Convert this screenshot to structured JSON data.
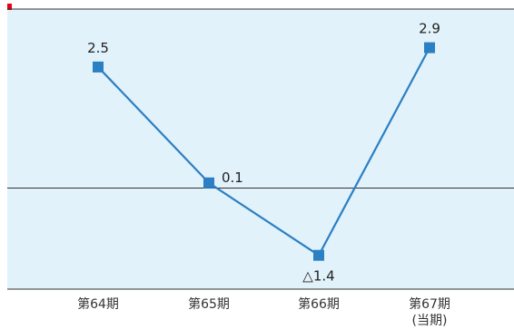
{
  "chart_data": {
    "type": "line",
    "categories": [
      "第64期",
      "第65期",
      "第66期",
      "第67期"
    ],
    "category_sublabels": [
      "",
      "",
      "",
      "(当期)"
    ],
    "values": [
      2.5,
      0.1,
      -1.4,
      2.9
    ],
    "data_labels": [
      "2.5",
      "0.1",
      "△1.4",
      "2.9"
    ],
    "ylim": [
      -2.1,
      3.7
    ],
    "grid": false,
    "zero_line": true,
    "colors": {
      "plot_background": "#e1f2fa",
      "series_line": "#2b7fc3",
      "marker": "#2b7fc3",
      "axis_line": "#333333",
      "accent_top_left": "#e60012"
    }
  }
}
